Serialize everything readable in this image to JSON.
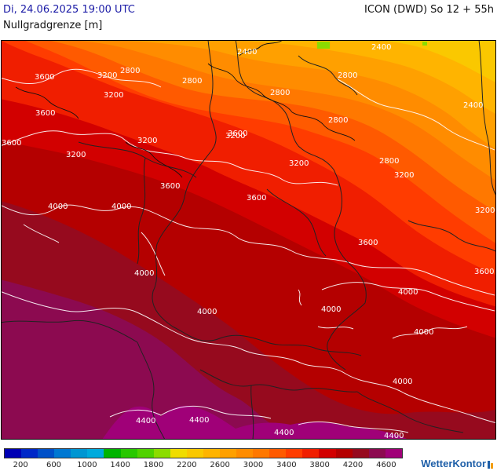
{
  "header": {
    "datetime": "Di, 24.06.2025 19:00 UTC",
    "model": "ICON (DWD) So 12 + 55h",
    "parameter": "Nullgradgrenze [m]"
  },
  "map": {
    "contour_labels": [
      {
        "text": "3600"
      },
      {
        "text": "3200"
      },
      {
        "text": "2800"
      },
      {
        "text": "2800"
      },
      {
        "text": "3200"
      },
      {
        "text": "2400"
      },
      {
        "text": "2400"
      },
      {
        "text": "2800"
      },
      {
        "text": "2800"
      },
      {
        "text": "3600"
      },
      {
        "text": "3200"
      },
      {
        "text": "3600"
      },
      {
        "text": "3200"
      },
      {
        "text": "2400"
      },
      {
        "text": "2800"
      },
      {
        "text": "3200"
      },
      {
        "text": "3200"
      },
      {
        "text": "3600"
      },
      {
        "text": "2800"
      },
      {
        "text": "3200"
      },
      {
        "text": "4000"
      },
      {
        "text": "4000"
      },
      {
        "text": "3600"
      },
      {
        "text": "3200"
      },
      {
        "text": "3600"
      },
      {
        "text": "4000"
      },
      {
        "text": "3600"
      },
      {
        "text": "4000"
      },
      {
        "text": "4000"
      },
      {
        "text": "4000"
      },
      {
        "text": "4000"
      },
      {
        "text": "4000"
      },
      {
        "text": "4400"
      },
      {
        "text": "4400"
      },
      {
        "text": "4400"
      },
      {
        "text": "4400"
      },
      {
        "text": "3600"
      },
      {
        "text": "4000"
      }
    ]
  },
  "legend": {
    "colors": [
      "#0000b4",
      "#0028c8",
      "#0050c8",
      "#0078d2",
      "#0096d2",
      "#00aadc",
      "#00b400",
      "#28c800",
      "#50d200",
      "#8cdc00",
      "#f0dc00",
      "#fac800",
      "#ffb400",
      "#ffa000",
      "#ff8c00",
      "#ff7800",
      "#ff5a00",
      "#ff3c00",
      "#f01e00",
      "#d20000",
      "#b40000",
      "#960a1e",
      "#8c0a50",
      "#a00078"
    ],
    "ticks": [
      "200",
      "600",
      "1000",
      "1400",
      "1800",
      "2200",
      "2600",
      "3000",
      "3400",
      "3800",
      "4200",
      "4600"
    ]
  },
  "branding": {
    "logo_text": "WetterKontor"
  }
}
